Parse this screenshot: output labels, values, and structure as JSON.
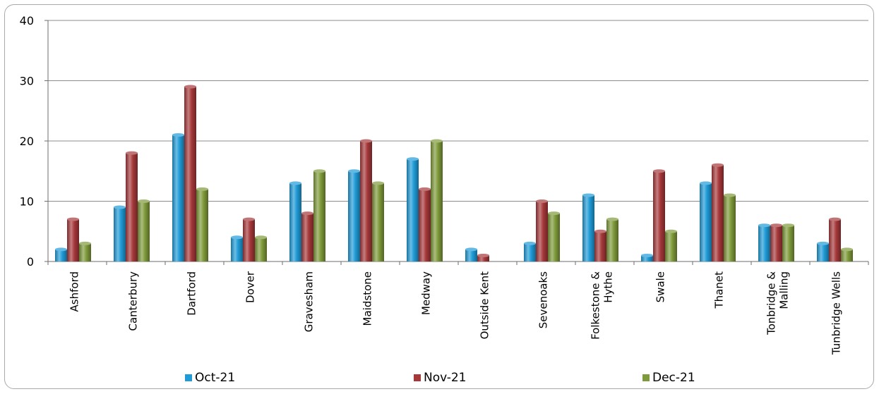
{
  "chart_data": {
    "type": "bar",
    "title": "",
    "xlabel": "",
    "ylabel": "",
    "ylim": [
      0,
      40
    ],
    "yticks": [
      0,
      10,
      20,
      30,
      40
    ],
    "grid": "horizontal",
    "legend_position": "bottom",
    "categories": [
      [
        "Ashford"
      ],
      [
        "Canterbury"
      ],
      [
        "Dartford"
      ],
      [
        "Dover"
      ],
      [
        "Gravesham"
      ],
      [
        "Maidstone"
      ],
      [
        "Medway"
      ],
      [
        "Outside Kent"
      ],
      [
        "Sevenoaks"
      ],
      [
        "Folkestone &",
        "Hythe"
      ],
      [
        "Swale"
      ],
      [
        "Thanet"
      ],
      [
        "Tonbridge &",
        "Malling"
      ],
      [
        "Tunbridge Wells"
      ]
    ],
    "series": [
      {
        "name": "Oct-21",
        "color": "#1f9bd7",
        "values": [
          2,
          9,
          21,
          4,
          13,
          15,
          17,
          2,
          3,
          11,
          1,
          13,
          6,
          3
        ]
      },
      {
        "name": "Nov-21",
        "color": "#a6383a",
        "values": [
          7,
          18,
          29,
          7,
          8,
          20,
          12,
          1,
          10,
          5,
          15,
          16,
          6,
          7
        ]
      },
      {
        "name": "Dec-21",
        "color": "#7f9a3a",
        "values": [
          3,
          10,
          12,
          4,
          15,
          13,
          20,
          0,
          8,
          7,
          5,
          11,
          6,
          2
        ]
      }
    ]
  }
}
